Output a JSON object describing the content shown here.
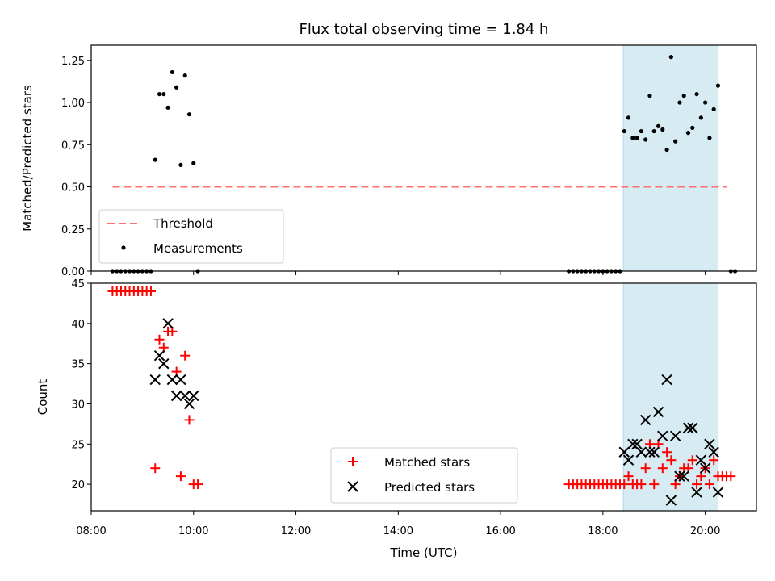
{
  "chart_data": [
    {
      "type": "scatter",
      "title": "Flux total observing time = 1.84 h",
      "xlabel": "",
      "ylabel": "Matched/Predicted stars",
      "xlim": [
        "08:00",
        "21:00"
      ],
      "ylim": [
        0,
        1.34
      ],
      "yticks": [
        "0.00",
        "0.25",
        "0.50",
        "0.75",
        "1.00",
        "1.25"
      ],
      "legend_position": "lower-left",
      "highlight_span": {
        "x": [
          "18:24",
          "20:15"
        ],
        "color": "#add8e6"
      },
      "threshold": {
        "name": "Threshold",
        "y": 0.5,
        "x": [
          "08:25",
          "20:25"
        ],
        "color": "#ff6f6f",
        "style": "dashed"
      },
      "series": [
        {
          "name": "Measurements",
          "marker": "dot",
          "color": "#000000",
          "points": [
            [
              "08:25",
              0.0
            ],
            [
              "08:30",
              0.0
            ],
            [
              "08:35",
              0.0
            ],
            [
              "08:40",
              0.0
            ],
            [
              "08:45",
              0.0
            ],
            [
              "08:50",
              0.0
            ],
            [
              "08:55",
              0.0
            ],
            [
              "09:00",
              0.0
            ],
            [
              "09:05",
              0.0
            ],
            [
              "09:10",
              0.0
            ],
            [
              "09:15",
              0.66
            ],
            [
              "09:20",
              1.05
            ],
            [
              "09:25",
              1.05
            ],
            [
              "09:30",
              0.97
            ],
            [
              "09:35",
              1.18
            ],
            [
              "09:40",
              1.09
            ],
            [
              "09:45",
              0.63
            ],
            [
              "09:50",
              1.16
            ],
            [
              "09:55",
              0.93
            ],
            [
              "10:00",
              0.64
            ],
            [
              "10:05",
              0.0
            ],
            [
              "17:20",
              0.0
            ],
            [
              "17:25",
              0.0
            ],
            [
              "17:30",
              0.0
            ],
            [
              "17:35",
              0.0
            ],
            [
              "17:40",
              0.0
            ],
            [
              "17:45",
              0.0
            ],
            [
              "17:50",
              0.0
            ],
            [
              "17:55",
              0.0
            ],
            [
              "18:00",
              0.0
            ],
            [
              "18:05",
              0.0
            ],
            [
              "18:10",
              0.0
            ],
            [
              "18:15",
              0.0
            ],
            [
              "18:20",
              0.0
            ],
            [
              "18:25",
              0.83
            ],
            [
              "18:30",
              0.91
            ],
            [
              "18:35",
              0.79
            ],
            [
              "18:40",
              0.79
            ],
            [
              "18:45",
              0.83
            ],
            [
              "18:50",
              0.78
            ],
            [
              "18:55",
              1.04
            ],
            [
              "19:00",
              0.83
            ],
            [
              "19:05",
              0.86
            ],
            [
              "19:10",
              0.84
            ],
            [
              "19:15",
              0.72
            ],
            [
              "19:20",
              1.27
            ],
            [
              "19:25",
              0.77
            ],
            [
              "19:30",
              1.0
            ],
            [
              "19:35",
              1.04
            ],
            [
              "19:40",
              0.82
            ],
            [
              "19:45",
              0.85
            ],
            [
              "19:50",
              1.05
            ],
            [
              "19:55",
              0.91
            ],
            [
              "20:00",
              1.0
            ],
            [
              "20:05",
              0.79
            ],
            [
              "20:10",
              0.96
            ],
            [
              "20:15",
              1.1
            ],
            [
              "20:30",
              0.0
            ],
            [
              "20:35",
              0.0
            ]
          ]
        }
      ]
    },
    {
      "type": "scatter",
      "title": "",
      "xlabel": "Time (UTC)",
      "ylabel": "Count",
      "xlim": [
        "08:00",
        "21:00"
      ],
      "ylim": [
        16.7,
        45
      ],
      "yticks": [
        "20",
        "25",
        "30",
        "35",
        "40",
        "45"
      ],
      "xticks": [
        "08:00",
        "10:00",
        "12:00",
        "14:00",
        "16:00",
        "18:00",
        "20:00"
      ],
      "legend_position": "lower-center",
      "highlight_span": {
        "x": [
          "18:24",
          "20:15"
        ],
        "color": "#add8e6"
      },
      "series": [
        {
          "name": "Matched stars",
          "marker": "plus",
          "color": "#ff0000",
          "points": [
            [
              "08:25",
              44
            ],
            [
              "08:30",
              44
            ],
            [
              "08:35",
              44
            ],
            [
              "08:40",
              44
            ],
            [
              "08:45",
              44
            ],
            [
              "08:50",
              44
            ],
            [
              "08:55",
              44
            ],
            [
              "09:00",
              44
            ],
            [
              "09:05",
              44
            ],
            [
              "09:10",
              44
            ],
            [
              "09:15",
              22
            ],
            [
              "09:20",
              38
            ],
            [
              "09:25",
              37
            ],
            [
              "09:30",
              39
            ],
            [
              "09:35",
              39
            ],
            [
              "09:40",
              34
            ],
            [
              "09:45",
              21
            ],
            [
              "09:50",
              36
            ],
            [
              "09:55",
              28
            ],
            [
              "10:00",
              20
            ],
            [
              "10:05",
              20
            ],
            [
              "17:20",
              20
            ],
            [
              "17:25",
              20
            ],
            [
              "17:30",
              20
            ],
            [
              "17:35",
              20
            ],
            [
              "17:40",
              20
            ],
            [
              "17:45",
              20
            ],
            [
              "17:50",
              20
            ],
            [
              "17:55",
              20
            ],
            [
              "18:00",
              20
            ],
            [
              "18:05",
              20
            ],
            [
              "18:10",
              20
            ],
            [
              "18:15",
              20
            ],
            [
              "18:20",
              20
            ],
            [
              "18:25",
              20
            ],
            [
              "18:30",
              21
            ],
            [
              "18:35",
              20
            ],
            [
              "18:40",
              20
            ],
            [
              "18:45",
              20
            ],
            [
              "18:50",
              22
            ],
            [
              "18:55",
              25
            ],
            [
              "19:00",
              20
            ],
            [
              "19:05",
              25
            ],
            [
              "19:10",
              22
            ],
            [
              "19:15",
              24
            ],
            [
              "19:20",
              23
            ],
            [
              "19:25",
              20
            ],
            [
              "19:30",
              21
            ],
            [
              "19:35",
              22
            ],
            [
              "19:40",
              22
            ],
            [
              "19:45",
              23
            ],
            [
              "19:50",
              20
            ],
            [
              "19:55",
              21
            ],
            [
              "20:00",
              22
            ],
            [
              "20:05",
              20
            ],
            [
              "20:10",
              23
            ],
            [
              "20:15",
              21
            ],
            [
              "20:20",
              21
            ],
            [
              "20:25",
              21
            ],
            [
              "20:30",
              21
            ]
          ]
        },
        {
          "name": "Predicted stars",
          "marker": "x",
          "color": "#000000",
          "points": [
            [
              "09:15",
              33
            ],
            [
              "09:20",
              36
            ],
            [
              "09:25",
              35
            ],
            [
              "09:30",
              40
            ],
            [
              "09:35",
              33
            ],
            [
              "09:40",
              31
            ],
            [
              "09:45",
              33
            ],
            [
              "09:50",
              31
            ],
            [
              "09:55",
              30
            ],
            [
              "10:00",
              31
            ],
            [
              "18:25",
              24
            ],
            [
              "18:30",
              23
            ],
            [
              "18:35",
              25
            ],
            [
              "18:40",
              25
            ],
            [
              "18:45",
              24
            ],
            [
              "18:50",
              28
            ],
            [
              "18:55",
              24
            ],
            [
              "19:00",
              24
            ],
            [
              "19:05",
              29
            ],
            [
              "19:10",
              26
            ],
            [
              "19:15",
              33
            ],
            [
              "19:20",
              18
            ],
            [
              "19:25",
              26
            ],
            [
              "19:30",
              21
            ],
            [
              "19:35",
              21
            ],
            [
              "19:40",
              27
            ],
            [
              "19:45",
              27
            ],
            [
              "19:50",
              19
            ],
            [
              "19:55",
              23
            ],
            [
              "20:00",
              22
            ],
            [
              "20:05",
              25
            ],
            [
              "20:10",
              24
            ],
            [
              "20:15",
              19
            ]
          ]
        }
      ]
    }
  ]
}
